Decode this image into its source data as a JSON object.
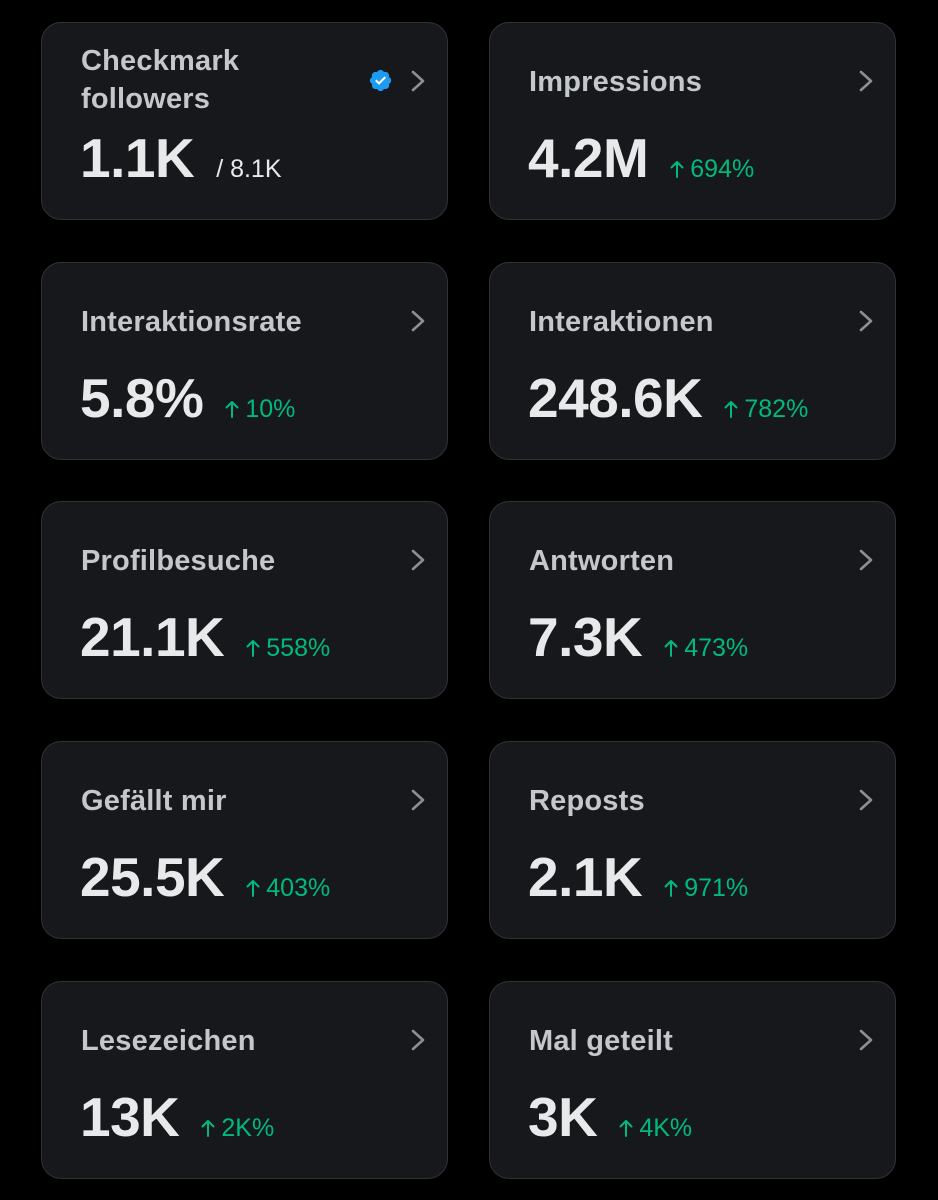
{
  "cards": [
    {
      "label": "Checkmark followers",
      "value": "1.1K",
      "total": "/ 8.1K"
    },
    {
      "label": "Impressions",
      "value": "4.2M",
      "change": "694%"
    },
    {
      "label": "Interaktionsrate",
      "value": "5.8%",
      "change": "10%"
    },
    {
      "label": "Interaktionen",
      "value": "248.6K",
      "change": "782%"
    },
    {
      "label": "Profilbesuche",
      "value": "21.1K",
      "change": "558%"
    },
    {
      "label": "Antworten",
      "value": "7.3K",
      "change": "473%"
    },
    {
      "label": "Gefällt mir",
      "value": "25.5K",
      "change": "403%"
    },
    {
      "label": "Reposts",
      "value": "2.1K",
      "change": "971%"
    },
    {
      "label": "Lesezeichen",
      "value": "13K",
      "change": "2K%"
    },
    {
      "label": "Mal geteilt",
      "value": "3K",
      "change": "4K%"
    }
  ],
  "icons": {
    "chevron": "chevron-right-icon",
    "arrow": "arrow-up-icon",
    "verified": "verified-badge-icon"
  },
  "colors": {
    "background": "#000000",
    "card": "#16181c",
    "card_border": "#2f3336",
    "label": "#c4c7cb",
    "value": "#e7e9ea",
    "positive": "#00ba7c",
    "verified": "#1d9bf0",
    "chevron": "#8b9096"
  }
}
